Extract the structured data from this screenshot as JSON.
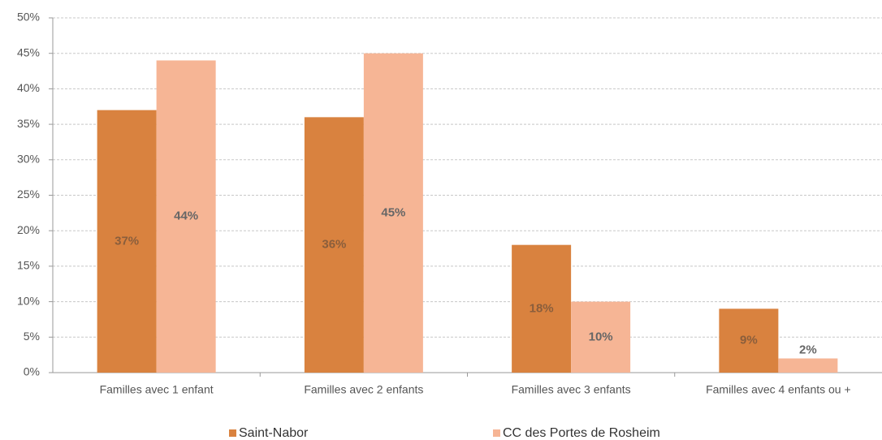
{
  "chart_data": {
    "type": "bar",
    "categories": [
      "Familles avec 1 enfant",
      "Familles avec 2 enfants",
      "Familles avec 3 enfants",
      "Familles avec 4 enfants ou +"
    ],
    "series": [
      {
        "name": "Saint-Nabor",
        "color": "#d9823f",
        "values": [
          37,
          36,
          18,
          9
        ],
        "value_labels": [
          "37%",
          "36%",
          "18%",
          "9%"
        ]
      },
      {
        "name": "CC des Portes de Rosheim",
        "color": "#f6b595",
        "values": [
          44,
          45,
          10,
          2
        ],
        "value_labels": [
          "44%",
          "45%",
          "10%",
          "2%"
        ]
      }
    ],
    "ylim": [
      0,
      50
    ],
    "yticks": [
      {
        "value": 0,
        "label": "0%"
      },
      {
        "value": 5,
        "label": "5%"
      },
      {
        "value": 10,
        "label": "10%"
      },
      {
        "value": 15,
        "label": "15%"
      },
      {
        "value": 20,
        "label": "20%"
      },
      {
        "value": 25,
        "label": "25%"
      },
      {
        "value": 30,
        "label": "30%"
      },
      {
        "value": 35,
        "label": "35%"
      },
      {
        "value": 40,
        "label": "40%"
      },
      {
        "value": 45,
        "label": "45%"
      },
      {
        "value": 50,
        "label": "50%"
      }
    ],
    "grid": true
  }
}
